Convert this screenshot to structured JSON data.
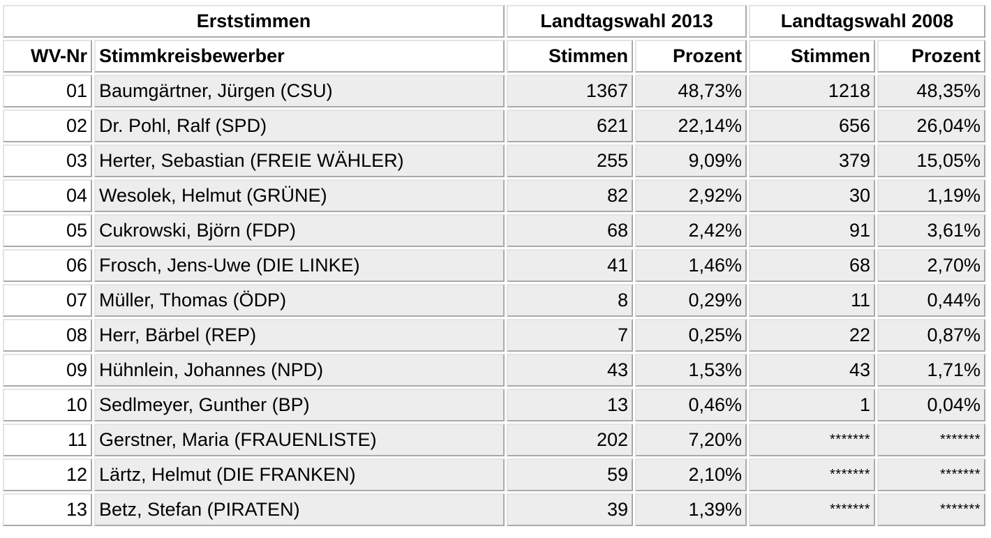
{
  "header": {
    "erststimmen": "Erststimmen",
    "election_2013": "Landtagswahl 2013",
    "election_2008": "Landtagswahl 2008"
  },
  "columns": {
    "wv_nr": "WV-Nr",
    "candidate": "Stimmkreisbewerber",
    "votes_2013": "Stimmen",
    "percent_2013": "Prozent",
    "votes_2008": "Stimmen",
    "percent_2008": "Prozent"
  },
  "rows": [
    {
      "wv": "01",
      "name": "Baumgärtner, Jürgen (CSU)",
      "votes_2013": "1367",
      "percent_2013": "48,73%",
      "votes_2008": "1218",
      "percent_2008": "48,35%"
    },
    {
      "wv": "02",
      "name": "Dr. Pohl, Ralf (SPD)",
      "votes_2013": "621",
      "percent_2013": "22,14%",
      "votes_2008": "656",
      "percent_2008": "26,04%"
    },
    {
      "wv": "03",
      "name": "Herter, Sebastian (FREIE WÄHLER)",
      "votes_2013": "255",
      "percent_2013": "9,09%",
      "votes_2008": "379",
      "percent_2008": "15,05%"
    },
    {
      "wv": "04",
      "name": "Wesolek, Helmut (GRÜNE)",
      "votes_2013": "82",
      "percent_2013": "2,92%",
      "votes_2008": "30",
      "percent_2008": "1,19%"
    },
    {
      "wv": "05",
      "name": "Cukrowski, Björn (FDP)",
      "votes_2013": "68",
      "percent_2013": "2,42%",
      "votes_2008": "91",
      "percent_2008": "3,61%"
    },
    {
      "wv": "06",
      "name": "Frosch, Jens-Uwe (DIE LINKE)",
      "votes_2013": "41",
      "percent_2013": "1,46%",
      "votes_2008": "68",
      "percent_2008": "2,70%"
    },
    {
      "wv": "07",
      "name": "Müller, Thomas (ÖDP)",
      "votes_2013": "8",
      "percent_2013": "0,29%",
      "votes_2008": "11",
      "percent_2008": "0,44%"
    },
    {
      "wv": "08",
      "name": "Herr, Bärbel (REP)",
      "votes_2013": "7",
      "percent_2013": "0,25%",
      "votes_2008": "22",
      "percent_2008": "0,87%"
    },
    {
      "wv": "09",
      "name": "Hühnlein, Johannes (NPD)",
      "votes_2013": "43",
      "percent_2013": "1,53%",
      "votes_2008": "43",
      "percent_2008": "1,71%"
    },
    {
      "wv": "10",
      "name": "Sedlmeyer, Gunther (BP)",
      "votes_2013": "13",
      "percent_2013": "0,46%",
      "votes_2008": "1",
      "percent_2008": "0,04%"
    },
    {
      "wv": "11",
      "name": "Gerstner, Maria (FRAUENLISTE)",
      "votes_2013": "202",
      "percent_2013": "7,20%",
      "votes_2008": "*******",
      "percent_2008": "*******"
    },
    {
      "wv": "12",
      "name": "Lärtz, Helmut (DIE FRANKEN)",
      "votes_2013": "59",
      "percent_2013": "2,10%",
      "votes_2008": "*******",
      "percent_2008": "*******"
    },
    {
      "wv": "13",
      "name": "Betz, Stefan (PIRATEN)",
      "votes_2013": "39",
      "percent_2013": "1,39%",
      "votes_2008": "*******",
      "percent_2008": "*******"
    }
  ]
}
